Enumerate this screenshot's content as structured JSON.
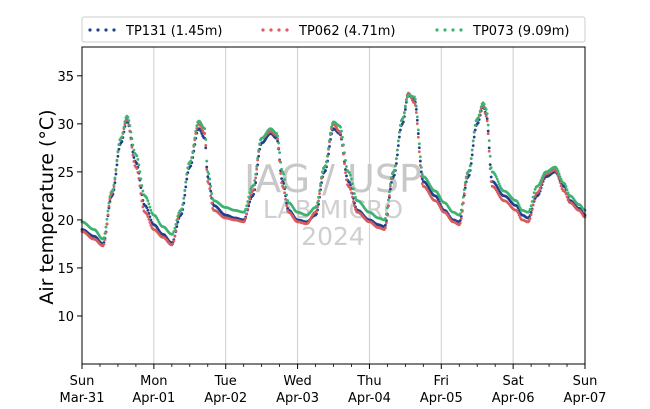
{
  "watermark": {
    "line1": "IAG / USP",
    "line2": "LAB MICRO",
    "line3": "2024"
  },
  "chart_data": {
    "type": "scatter",
    "title": "",
    "xlabel": "",
    "ylabel": "Air temperature (°C)",
    "ylim": [
      5,
      38
    ],
    "yticks": [
      10,
      15,
      20,
      25,
      30,
      35
    ],
    "xlim": [
      "2024-03-31",
      "2024-04-07"
    ],
    "xticks": [
      {
        "date": "2024-03-31",
        "day": "Sun",
        "date_label": "Mar-31"
      },
      {
        "date": "2024-04-01",
        "day": "Mon",
        "date_label": "Apr-01"
      },
      {
        "date": "2024-04-02",
        "day": "Tue",
        "date_label": "Apr-02"
      },
      {
        "date": "2024-04-03",
        "day": "Wed",
        "date_label": "Apr-03"
      },
      {
        "date": "2024-04-04",
        "day": "Thu",
        "date_label": "Apr-04"
      },
      {
        "date": "2024-04-05",
        "day": "Fri",
        "date_label": "Apr-05"
      },
      {
        "date": "2024-04-06",
        "day": "Sat",
        "date_label": "Apr-06"
      },
      {
        "date": "2024-04-07",
        "day": "Sun",
        "date_label": "Apr-07"
      }
    ],
    "grid": "vertical",
    "legend": "top",
    "series": [
      {
        "name": "TP131 (1.45m)",
        "color": "#1f3f8f",
        "points": [
          [
            "2024-03-31T00:00",
            19.0
          ],
          [
            "2024-03-31T04:00",
            18.3
          ],
          [
            "2024-03-31T07:00",
            17.5
          ],
          [
            "2024-03-31T10:00",
            22.5
          ],
          [
            "2024-03-31T13:00",
            28.0
          ],
          [
            "2024-03-31T15:00",
            30.3
          ],
          [
            "2024-03-31T18:00",
            26.0
          ],
          [
            "2024-03-31T21:00",
            21.5
          ],
          [
            "2024-04-01T00:00",
            19.5
          ],
          [
            "2024-04-01T03:00",
            18.5
          ],
          [
            "2024-04-01T06:00",
            17.6
          ],
          [
            "2024-04-01T09:00",
            20.5
          ],
          [
            "2024-04-01T12:00",
            25.5
          ],
          [
            "2024-04-01T15:00",
            29.5
          ],
          [
            "2024-04-01T17:00",
            28.5
          ],
          [
            "2024-04-01T18:00",
            24.5
          ],
          [
            "2024-04-01T20:00",
            21.5
          ],
          [
            "2024-04-02T00:00",
            20.5
          ],
          [
            "2024-04-02T03:00",
            20.2
          ],
          [
            "2024-04-02T06:00",
            20.0
          ],
          [
            "2024-04-02T09:00",
            22.5
          ],
          [
            "2024-04-02T12:00",
            28.0
          ],
          [
            "2024-04-02T15:00",
            29.0
          ],
          [
            "2024-04-02T17:00",
            28.5
          ],
          [
            "2024-04-02T19:00",
            24.0
          ],
          [
            "2024-04-02T21:00",
            21.0
          ],
          [
            "2024-04-03T00:00",
            20.0
          ],
          [
            "2024-04-03T03:00",
            19.8
          ],
          [
            "2024-04-03T06:00",
            20.5
          ],
          [
            "2024-04-03T09:00",
            25.0
          ],
          [
            "2024-04-03T12:00",
            29.5
          ],
          [
            "2024-04-03T14:00",
            29.0
          ],
          [
            "2024-04-03T17:00",
            24.0
          ],
          [
            "2024-04-03T20:00",
            21.0
          ],
          [
            "2024-04-04T00:00",
            20.0
          ],
          [
            "2024-04-04T03:00",
            19.5
          ],
          [
            "2024-04-04T05:00",
            19.3
          ],
          [
            "2024-04-04T08:00",
            24.5
          ],
          [
            "2024-04-04T11:00",
            30.0
          ],
          [
            "2024-04-04T13:00",
            33.0
          ],
          [
            "2024-04-04T15:00",
            32.5
          ],
          [
            "2024-04-04T18:00",
            24.0
          ],
          [
            "2024-04-04T22:00",
            22.5
          ],
          [
            "2024-04-05T01:00",
            21.0
          ],
          [
            "2024-04-05T04:00",
            20.0
          ],
          [
            "2024-04-05T06:00",
            19.8
          ],
          [
            "2024-04-05T09:00",
            24.5
          ],
          [
            "2024-04-05T12:00",
            30.0
          ],
          [
            "2024-04-05T14:00",
            31.8
          ],
          [
            "2024-04-05T15:00",
            31.0
          ],
          [
            "2024-04-05T17:00",
            24.0
          ],
          [
            "2024-04-05T21:00",
            22.5
          ],
          [
            "2024-04-06T01:00",
            21.5
          ],
          [
            "2024-04-06T03:00",
            20.5
          ],
          [
            "2024-04-06T05:00",
            20.2
          ],
          [
            "2024-04-06T08:00",
            22.5
          ],
          [
            "2024-04-06T11:00",
            24.5
          ],
          [
            "2024-04-06T14:00",
            25.0
          ],
          [
            "2024-04-06T17:00",
            23.5
          ],
          [
            "2024-04-06T19:00",
            22.0
          ],
          [
            "2024-04-06T22:00",
            21.2
          ],
          [
            "2024-04-07T00:00",
            20.5
          ]
        ]
      },
      {
        "name": "TP062 (4.71m)",
        "color": "#d95c5c",
        "points": [
          [
            "2024-03-31T00:00",
            18.8
          ],
          [
            "2024-03-31T04:00",
            18.0
          ],
          [
            "2024-03-31T07:00",
            17.3
          ],
          [
            "2024-03-31T10:00",
            22.8
          ],
          [
            "2024-03-31T13:00",
            28.5
          ],
          [
            "2024-03-31T15:00",
            30.5
          ],
          [
            "2024-03-31T18:00",
            25.5
          ],
          [
            "2024-03-31T21:00",
            20.8
          ],
          [
            "2024-04-01T00:00",
            19.0
          ],
          [
            "2024-04-01T03:00",
            18.2
          ],
          [
            "2024-04-01T06:00",
            17.4
          ],
          [
            "2024-04-01T09:00",
            21.0
          ],
          [
            "2024-04-01T12:00",
            26.0
          ],
          [
            "2024-04-01T15:00",
            30.0
          ],
          [
            "2024-04-01T17:00",
            29.0
          ],
          [
            "2024-04-01T18:00",
            24.0
          ],
          [
            "2024-04-01T20:00",
            21.0
          ],
          [
            "2024-04-02T00:00",
            20.2
          ],
          [
            "2024-04-02T03:00",
            20.0
          ],
          [
            "2024-04-02T06:00",
            19.8
          ],
          [
            "2024-04-02T09:00",
            23.0
          ],
          [
            "2024-04-02T12:00",
            28.5
          ],
          [
            "2024-04-02T15:00",
            29.2
          ],
          [
            "2024-04-02T17:00",
            28.8
          ],
          [
            "2024-04-02T19:00",
            23.5
          ],
          [
            "2024-04-02T21:00",
            20.8
          ],
          [
            "2024-04-03T00:00",
            19.8
          ],
          [
            "2024-04-03T03:00",
            19.6
          ],
          [
            "2024-04-03T06:00",
            20.8
          ],
          [
            "2024-04-03T09:00",
            25.5
          ],
          [
            "2024-04-03T12:00",
            30.0
          ],
          [
            "2024-04-03T14:00",
            29.2
          ],
          [
            "2024-04-03T17:00",
            23.5
          ],
          [
            "2024-04-03T20:00",
            20.8
          ],
          [
            "2024-04-04T00:00",
            19.8
          ],
          [
            "2024-04-04T03:00",
            19.2
          ],
          [
            "2024-04-04T05:00",
            19.0
          ],
          [
            "2024-04-04T08:00",
            25.0
          ],
          [
            "2024-04-04T11:00",
            30.5
          ],
          [
            "2024-04-04T13:00",
            33.2
          ],
          [
            "2024-04-04T15:00",
            32.2
          ],
          [
            "2024-04-04T18:00",
            23.5
          ],
          [
            "2024-04-04T22:00",
            22.0
          ],
          [
            "2024-04-05T01:00",
            20.8
          ],
          [
            "2024-04-05T04:00",
            19.8
          ],
          [
            "2024-04-05T06:00",
            19.5
          ],
          [
            "2024-04-05T09:00",
            25.0
          ],
          [
            "2024-04-05T12:00",
            30.5
          ],
          [
            "2024-04-05T14:00",
            32.0
          ],
          [
            "2024-04-05T15:00",
            30.8
          ],
          [
            "2024-04-05T17:00",
            23.5
          ],
          [
            "2024-04-05T21:00",
            22.0
          ],
          [
            "2024-04-06T01:00",
            21.0
          ],
          [
            "2024-04-06T03:00",
            20.0
          ],
          [
            "2024-04-06T05:00",
            19.8
          ],
          [
            "2024-04-06T08:00",
            22.8
          ],
          [
            "2024-04-06T11:00",
            24.8
          ],
          [
            "2024-04-06T14:00",
            25.2
          ],
          [
            "2024-04-06T17:00",
            23.0
          ],
          [
            "2024-04-06T19:00",
            21.8
          ],
          [
            "2024-04-06T22:00",
            21.0
          ],
          [
            "2024-04-07T00:00",
            20.3
          ]
        ]
      },
      {
        "name": "TP073 (9.09m)",
        "color": "#3cb371",
        "points": [
          [
            "2024-03-31T00:00",
            19.8
          ],
          [
            "2024-03-31T04:00",
            19.0
          ],
          [
            "2024-03-31T07:00",
            18.0
          ],
          [
            "2024-03-31T10:00",
            23.0
          ],
          [
            "2024-03-31T13:00",
            28.5
          ],
          [
            "2024-03-31T15:00",
            30.8
          ],
          [
            "2024-03-31T18:00",
            26.8
          ],
          [
            "2024-03-31T21:00",
            22.5
          ],
          [
            "2024-04-01T00:00",
            20.5
          ],
          [
            "2024-04-01T03:00",
            19.3
          ],
          [
            "2024-04-01T06:00",
            18.5
          ],
          [
            "2024-04-01T09:00",
            21.0
          ],
          [
            "2024-04-01T12:00",
            26.0
          ],
          [
            "2024-04-01T15:00",
            30.3
          ],
          [
            "2024-04-01T17:00",
            29.5
          ],
          [
            "2024-04-01T18:00",
            25.0
          ],
          [
            "2024-04-01T20:00",
            22.0
          ],
          [
            "2024-04-02T00:00",
            21.3
          ],
          [
            "2024-04-02T03:00",
            21.0
          ],
          [
            "2024-04-02T06:00",
            20.8
          ],
          [
            "2024-04-02T09:00",
            23.5
          ],
          [
            "2024-04-02T12:00",
            28.5
          ],
          [
            "2024-04-02T15:00",
            29.5
          ],
          [
            "2024-04-02T17:00",
            29.0
          ],
          [
            "2024-04-02T19:00",
            25.0
          ],
          [
            "2024-04-02T21:00",
            21.8
          ],
          [
            "2024-04-03T00:00",
            20.8
          ],
          [
            "2024-04-03T03:00",
            20.5
          ],
          [
            "2024-04-03T06:00",
            21.3
          ],
          [
            "2024-04-03T09:00",
            25.5
          ],
          [
            "2024-04-03T12:00",
            30.2
          ],
          [
            "2024-04-03T14:00",
            29.8
          ],
          [
            "2024-04-03T17:00",
            25.0
          ],
          [
            "2024-04-03T20:00",
            22.0
          ],
          [
            "2024-04-04T00:00",
            20.8
          ],
          [
            "2024-04-04T03:00",
            20.2
          ],
          [
            "2024-04-04T05:00",
            20.0
          ],
          [
            "2024-04-04T08:00",
            25.0
          ],
          [
            "2024-04-04T11:00",
            30.5
          ],
          [
            "2024-04-04T13:00",
            33.0
          ],
          [
            "2024-04-04T15:00",
            32.8
          ],
          [
            "2024-04-04T18:00",
            24.5
          ],
          [
            "2024-04-04T22:00",
            23.0
          ],
          [
            "2024-04-05T01:00",
            21.8
          ],
          [
            "2024-04-05T04:00",
            20.8
          ],
          [
            "2024-04-05T06:00",
            20.5
          ],
          [
            "2024-04-05T09:00",
            25.0
          ],
          [
            "2024-04-05T12:00",
            30.5
          ],
          [
            "2024-04-05T14:00",
            32.2
          ],
          [
            "2024-04-05T15:00",
            31.5
          ],
          [
            "2024-04-05T17:00",
            25.0
          ],
          [
            "2024-04-05T21:00",
            23.0
          ],
          [
            "2024-04-06T01:00",
            22.0
          ],
          [
            "2024-04-06T03:00",
            21.0
          ],
          [
            "2024-04-06T05:00",
            20.8
          ],
          [
            "2024-04-06T08:00",
            23.5
          ],
          [
            "2024-04-06T11:00",
            25.0
          ],
          [
            "2024-04-06T14:00",
            25.5
          ],
          [
            "2024-04-06T17:00",
            23.8
          ],
          [
            "2024-04-06T19:00",
            22.5
          ],
          [
            "2024-04-06T22:00",
            21.6
          ],
          [
            "2024-04-07T00:00",
            21.0
          ]
        ]
      }
    ]
  }
}
